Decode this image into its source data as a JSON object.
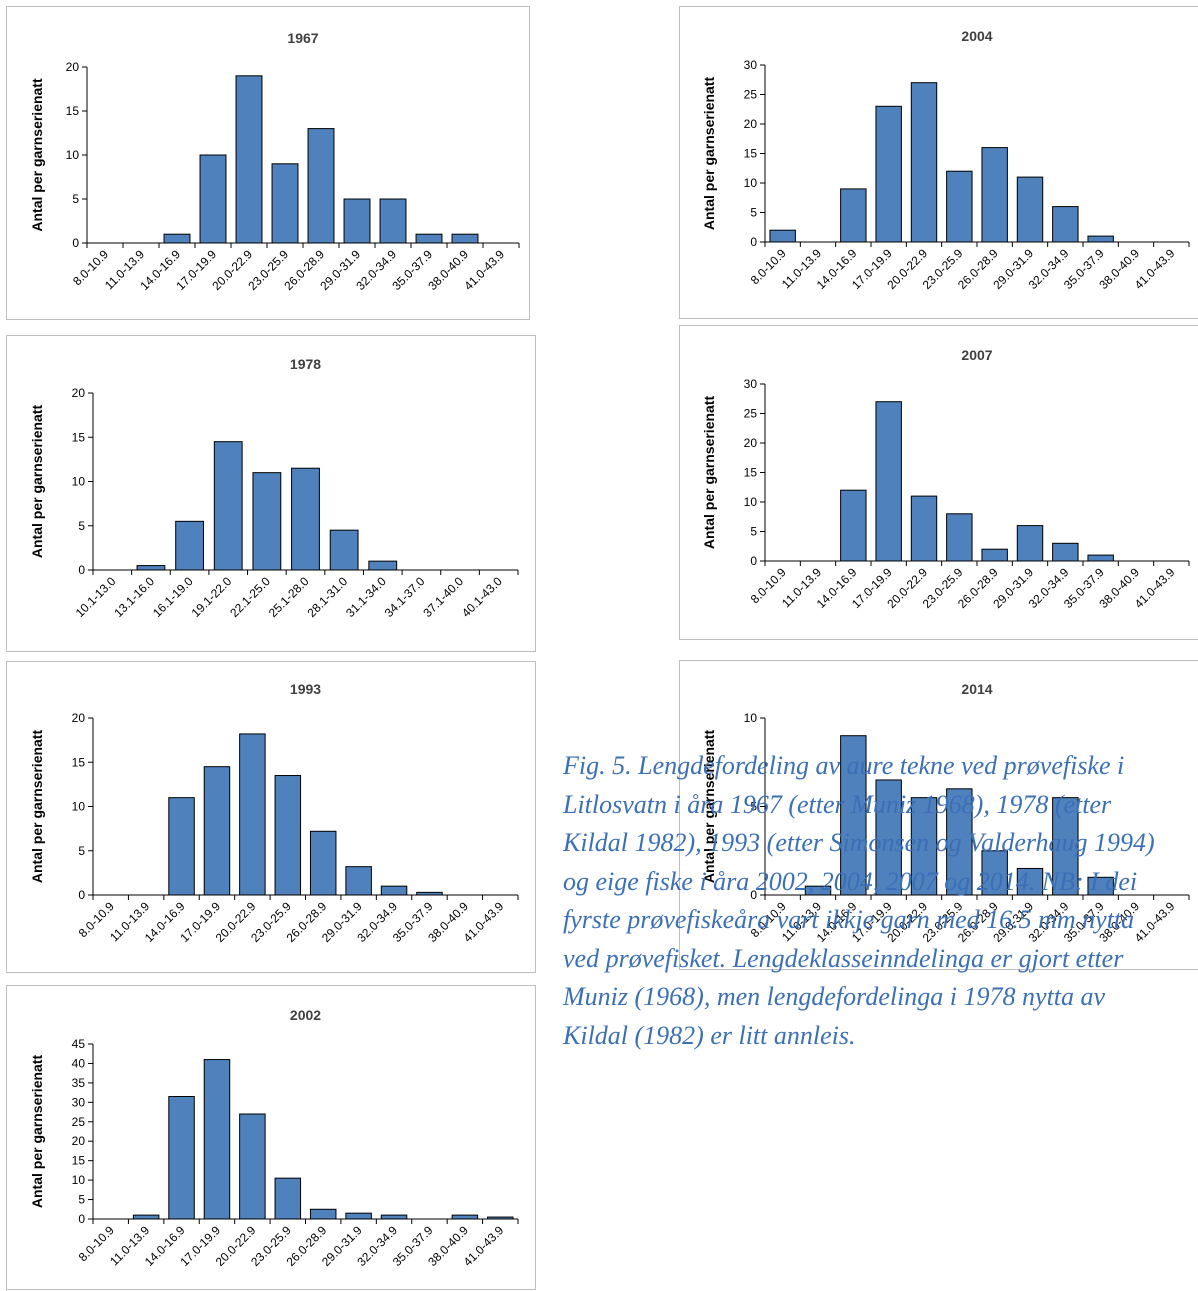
{
  "colors": {
    "bar": "#4f81bd",
    "bar_stroke": "#000000",
    "axis": "#000000",
    "caption": "#3b6fb6"
  },
  "caption_lines": [
    "Fig. 5. Lengdefordeling av aure tekne ved prøvefiske i",
    "Litlosvatn i åra 1967 (etter Muniz 1968), 1978 (etter",
    "Kildal 1982), 1993 (etter Simonsen og Valderhaug 1994)",
    "og eige fiske i åra 2002, 2004, 2007 og 2014. NB: I dei",
    "fyrste prøvefiskeåra vart ikkje garn med 16.5 mm nytta",
    "ved prøvefisket. Lengdeklasseinndelinga er gjort etter",
    "Muniz (1968), men lengdefordelinga i 1978 nytta av",
    "Kildal (1982) er litt annleis."
  ],
  "chart_data": [
    {
      "type": "bar",
      "title": "1967",
      "ylabel": "Antal per garnserienatt",
      "categories": [
        "8.0-10.9",
        "11.0-13.9",
        "14.0-16.9",
        "17.0-19.9",
        "20.0-22.9",
        "23.0-25.9",
        "26.0-28.9",
        "29.0-31.9",
        "32.0-34.9",
        "35.0-37.9",
        "38.0-40.9",
        "41.0-43.9"
      ],
      "values": [
        0,
        0,
        1,
        10,
        19,
        9,
        13,
        5,
        5,
        1,
        1,
        0
      ],
      "ylim": [
        0,
        20
      ],
      "yticks": [
        0,
        5,
        10,
        15,
        20
      ]
    },
    {
      "type": "bar",
      "title": "1978",
      "ylabel": "Antal per garnserienatt",
      "categories": [
        "10.1-13.0",
        "13.1-16.0",
        "16.1-19.0",
        "19.1-22.0",
        "22.1-25.0",
        "25.1-28.0",
        "28.1-31.0",
        "31.1-34.0",
        "34.1-37.0",
        "37.1-40.0",
        "40.1-43.0"
      ],
      "values": [
        0,
        0.5,
        5.5,
        14.5,
        11,
        11.5,
        4.5,
        1,
        0,
        0,
        0
      ],
      "ylim": [
        0,
        20
      ],
      "yticks": [
        0,
        5,
        10,
        15,
        20
      ]
    },
    {
      "type": "bar",
      "title": "1993",
      "ylabel": "Antal per garnserienatt",
      "categories": [
        "8.0-10.9",
        "11.0-13.9",
        "14.0-16.9",
        "17.0-19.9",
        "20.0-22.9",
        "23.0-25.9",
        "26.0-28.9",
        "29.0-31.9",
        "32.0-34.9",
        "35.0-37.9",
        "38.0-40.9",
        "41.0-43.9"
      ],
      "values": [
        0,
        0,
        11,
        14.5,
        18.2,
        13.5,
        7.2,
        3.2,
        1,
        0.3,
        0,
        0
      ],
      "ylim": [
        0,
        20
      ],
      "yticks": [
        0,
        5,
        10,
        15,
        20
      ]
    },
    {
      "type": "bar",
      "title": "2002",
      "ylabel": "Antal per garnserienatt",
      "categories": [
        "8.0-10.9",
        "11.0-13.9",
        "14.0-16.9",
        "17.0-19.9",
        "20.0-22.9",
        "23.0-25.9",
        "26.0-28.9",
        "29.0-31.9",
        "32.0-34.9",
        "35.0-37.9",
        "38.0-40.9",
        "41.0-43.9"
      ],
      "values": [
        0,
        1,
        31.5,
        41,
        27,
        10.5,
        2.5,
        1.5,
        1,
        0,
        1,
        0.5
      ],
      "ylim": [
        0,
        45
      ],
      "yticks": [
        0,
        5,
        10,
        15,
        20,
        25,
        30,
        35,
        40,
        45
      ]
    },
    {
      "type": "bar",
      "title": "2004",
      "ylabel": "Antal per garnserienatt",
      "categories": [
        "8.0-10.9",
        "11.0-13.9",
        "14.0-16.9",
        "17.0-19.9",
        "20.0-22.9",
        "23.0-25.9",
        "26.0-28.9",
        "29.0-31.9",
        "32.0-34.9",
        "35.0-37.9",
        "38.0-40.9",
        "41.0-43.9"
      ],
      "values": [
        2,
        0,
        9,
        23,
        27,
        12,
        16,
        11,
        6,
        1,
        0,
        0
      ],
      "ylim": [
        0,
        30
      ],
      "yticks": [
        0,
        5,
        10,
        15,
        20,
        25,
        30
      ]
    },
    {
      "type": "bar",
      "title": "2007",
      "ylabel": "Antal per garnserienatt",
      "categories": [
        "8.0-10.9",
        "11.0-13.9",
        "14.0-16.9",
        "17.0-19.9",
        "20.0-22.9",
        "23.0-25.9",
        "26.0-28.9",
        "29.0-31.9",
        "32.0-34.9",
        "35.0-37.9",
        "38.0-40.9",
        "41.0-43.9"
      ],
      "values": [
        0,
        0,
        12,
        27,
        11,
        8,
        2,
        6,
        3,
        1,
        0,
        0
      ],
      "ylim": [
        0,
        30
      ],
      "yticks": [
        0,
        5,
        10,
        15,
        20,
        25,
        30
      ]
    },
    {
      "type": "bar",
      "title": "2014",
      "ylabel": "Antal per garnserienatt",
      "categories": [
        "8.0-10.9",
        "11.0-13.9",
        "14.0-16.9",
        "17.0-19.9",
        "20.0-22.9",
        "23.0-25.9",
        "26.0-28.9",
        "29.0-31.9",
        "32.0-34.9",
        "35.0-37.9",
        "38.0-40.9",
        "41.0-43.9"
      ],
      "values": [
        0,
        0.5,
        9,
        6.5,
        5.5,
        6,
        2.5,
        1.5,
        5.5,
        1,
        0,
        0
      ],
      "ylim": [
        0,
        10
      ],
      "yticks": [
        0,
        5,
        10
      ]
    }
  ]
}
